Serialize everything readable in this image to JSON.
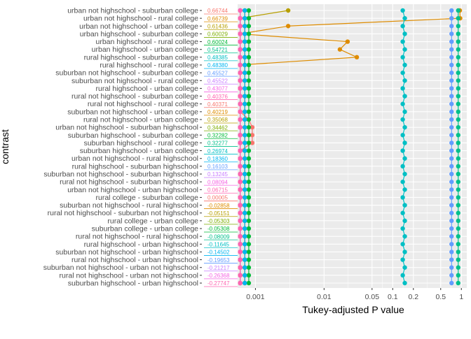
{
  "chart_data": {
    "type": "scatter",
    "title": "",
    "xlabel": "Tukey-adjusted P value",
    "ylabel": "contrast",
    "x_scale": "log10",
    "xlim": [
      0.00055,
      1.2
    ],
    "x_ticks": [
      {
        "value": 0.001,
        "label": "0.001"
      },
      {
        "value": 0.01,
        "label": "0.01"
      },
      {
        "value": 0.05,
        "label": "0.05"
      },
      {
        "value": 0.1,
        "label": "0.1"
      },
      {
        "value": 0.2,
        "label": "0.2"
      },
      {
        "value": 0.5,
        "label": "0.5"
      },
      {
        "value": 1,
        "label": "1"
      }
    ],
    "grid": true,
    "legend": "none",
    "colors": [
      "#F8766D",
      "#DE8C00",
      "#B79F00",
      "#7CAE00",
      "#00BA38",
      "#00C08B",
      "#00BFC4",
      "#00B4F0",
      "#619CFF",
      "#C77CFF",
      "#F564E3",
      "#FF64B0"
    ],
    "contrasts": [
      {
        "label": "urban not highschool - suburban college",
        "estimate": "0.66744"
      },
      {
        "label": "urban not highschool - rural college",
        "estimate": "0.66739"
      },
      {
        "label": "urban not highschool - urban college",
        "estimate": "0.61436"
      },
      {
        "label": "urban highschool - suburban college",
        "estimate": "0.60029"
      },
      {
        "label": "urban highschool - rural college",
        "estimate": "0.60024"
      },
      {
        "label": "urban highschool - urban college",
        "estimate": "0.54721"
      },
      {
        "label": "rural highschool - suburban college",
        "estimate": "0.48385"
      },
      {
        "label": "rural highschool - rural college",
        "estimate": "0.48380"
      },
      {
        "label": "suburban not highschool - suburban college",
        "estimate": "0.45527"
      },
      {
        "label": "suburban not highschool - rural college",
        "estimate": "0.45522"
      },
      {
        "label": "rural highschool - urban college",
        "estimate": "0.43077"
      },
      {
        "label": "rural not highschool - suburban college",
        "estimate": "0.40376"
      },
      {
        "label": "rural not highschool - rural college",
        "estimate": "0.40371"
      },
      {
        "label": "suburban not highschool - urban college",
        "estimate": "0.40219"
      },
      {
        "label": "rural not highschool - urban college",
        "estimate": "0.35068"
      },
      {
        "label": "urban not highschool - suburban highschool",
        "estimate": "0.34462"
      },
      {
        "label": "suburban highschool - suburban college",
        "estimate": "0.32282"
      },
      {
        "label": "suburban highschool - rural college",
        "estimate": "0.32277"
      },
      {
        "label": "suburban highschool - urban college",
        "estimate": "0.26974"
      },
      {
        "label": "urban not highschool - rural highschool",
        "estimate": "0.18360"
      },
      {
        "label": "rural highschool - suburban highschool",
        "estimate": "0.16103"
      },
      {
        "label": "suburban not highschool - suburban highschool",
        "estimate": "0.13245"
      },
      {
        "label": "rural not highschool - suburban highschool",
        "estimate": "0.08094"
      },
      {
        "label": "urban not highschool - urban highschool",
        "estimate": "0.06715"
      },
      {
        "label": "rural college - suburban college",
        "estimate": "0.00005"
      },
      {
        "label": "suburban not highschool - rural highschool",
        "estimate": "-0.02858"
      },
      {
        "label": "rural not highschool - suburban not highschool",
        "estimate": "-0.05151"
      },
      {
        "label": "rural college - urban college",
        "estimate": "-0.05303"
      },
      {
        "label": "suburban college - urban college",
        "estimate": "-0.05308"
      },
      {
        "label": "rural not highschool - rural highschool",
        "estimate": "-0.08009"
      },
      {
        "label": "rural highschool - urban highschool",
        "estimate": "-0.11645"
      },
      {
        "label": "suburban not highschool - urban highschool",
        "estimate": "-0.14502"
      },
      {
        "label": "rural not highschool - urban highschool",
        "estimate": "-0.19653"
      },
      {
        "label": "suburban not highschool - urban not highschool",
        "estimate": "-0.21217"
      },
      {
        "label": "rural not highschool - urban not highschool",
        "estimate": "-0.26368"
      },
      {
        "label": "suburban highschool - urban highschool",
        "estimate": "-0.27747"
      }
    ],
    "series": [
      {
        "color": "#F8766D",
        "values": [
          0.0006,
          0.0006,
          0.0006,
          0.0006,
          0.0006,
          0.0006,
          0.0006,
          0.0006,
          0.0006,
          0.0006,
          0.0006,
          0.0006,
          0.0006,
          0.0006,
          0.0008,
          0.0009,
          0.0009,
          0.0009,
          0.0006,
          0.0006,
          0.0006,
          0.0006,
          0.0006,
          0.0006,
          0.0006,
          0.0006,
          0.0006,
          0.0006,
          0.0006,
          0.0006,
          0.0006,
          0.0006,
          0.0006,
          0.0006,
          0.0006,
          0.0006
        ]
      },
      {
        "color": "#DE8C00",
        "values": [
          0.95,
          0.96,
          0.003,
          0.0006,
          0.022,
          0.017,
          0.03,
          0.0006,
          0.0006,
          0.0006,
          0.0006,
          0.0006,
          0.0006,
          0.0006,
          0.0006,
          0.0006,
          0.0006,
          0.0006,
          0.0006,
          0.0006,
          0.0006,
          0.0006,
          0.0006,
          0.0006,
          0.0006,
          0.0006,
          0.0006,
          0.0006,
          0.0006,
          0.0006,
          0.0006,
          0.0006,
          0.0006,
          0.0006,
          0.0006,
          0.0006
        ]
      },
      {
        "color": "#B79F00",
        "values": [
          0.003,
          0.0006,
          0.0006,
          0.0006,
          0.0006,
          0.0006,
          0.0006,
          0.0006,
          0.0006,
          0.0006,
          0.0006,
          0.0006,
          0.0006,
          0.0006,
          0.0006,
          0.0006,
          0.0006,
          0.0006,
          0.0006,
          0.0006,
          0.0006,
          0.0006,
          0.0006,
          0.0006,
          0.0006,
          0.0006,
          0.0006,
          0.0006,
          0.0006,
          0.0006,
          0.0006,
          0.0006,
          0.0006,
          0.0006,
          0.0006,
          0.0006
        ]
      },
      {
        "color": "#7CAE00",
        "values": [
          0.0007,
          0.0007,
          0.0007,
          0.0007,
          0.0007,
          0.0007,
          0.0007,
          0.0007,
          0.0007,
          0.0007,
          0.0007,
          0.0007,
          0.0007,
          0.0007,
          0.0007,
          0.0007,
          0.0007,
          0.0007,
          0.0007,
          0.0007,
          0.0007,
          0.0007,
          0.0007,
          0.0007,
          0.0007,
          0.0007,
          0.0007,
          0.0007,
          0.0007,
          0.0007,
          0.0007,
          0.0007,
          0.0007,
          0.0007,
          0.0007,
          0.0007
        ]
      },
      {
        "color": "#00BA38",
        "values": [
          0.0008,
          0.0008,
          0.0008,
          0.0008,
          0.0008,
          0.0008,
          0.0008,
          0.0008,
          0.0008,
          0.0008,
          0.0008,
          0.0008,
          0.0008,
          0.0008,
          0.0008,
          0.0008,
          0.0008,
          0.0008,
          0.0008,
          0.0008,
          0.0008,
          0.0008,
          0.0008,
          0.0008,
          0.0008,
          0.0008,
          0.0008,
          0.0008,
          0.0008,
          0.0008,
          0.0008,
          0.0008,
          0.0008,
          0.0008,
          0.0008,
          0.0008
        ]
      },
      {
        "color": "#00C08B",
        "values": [
          0.9,
          0.9,
          0.9,
          0.9,
          0.9,
          0.9,
          0.9,
          0.9,
          0.9,
          0.9,
          0.9,
          0.9,
          0.9,
          0.9,
          0.9,
          0.9,
          0.9,
          0.9,
          0.9,
          0.9,
          0.9,
          0.9,
          0.9,
          0.9,
          0.9,
          0.9,
          0.9,
          0.9,
          0.9,
          0.9,
          0.9,
          0.9,
          0.9,
          0.9,
          0.9,
          0.9
        ]
      },
      {
        "color": "#00BFC4",
        "values": [
          0.14,
          0.15,
          0.14,
          0.15,
          0.14,
          0.15,
          0.14,
          0.15,
          0.14,
          0.15,
          0.14,
          0.15,
          0.14,
          0.15,
          0.14,
          0.15,
          0.14,
          0.15,
          0.14,
          0.15,
          0.14,
          0.15,
          0.14,
          0.15,
          0.14,
          0.15,
          0.14,
          0.15,
          0.14,
          0.15,
          0.14,
          0.15,
          0.14,
          0.15,
          0.14,
          0.15
        ]
      },
      {
        "color": "#00B4F0",
        "values": [
          0.0007,
          0.0007,
          0.0007,
          0.0007,
          0.0007,
          0.0007,
          0.0007,
          0.0007,
          0.0007,
          0.0007,
          0.0007,
          0.0007,
          0.0007,
          0.0007,
          0.0007,
          0.0007,
          0.0007,
          0.0007,
          0.0007,
          0.0007,
          0.0007,
          0.0007,
          0.0007,
          0.0007,
          0.0007,
          0.0007,
          0.0007,
          0.0007,
          0.0007,
          0.0007,
          0.0007,
          0.0007,
          0.0007,
          0.0007,
          0.0007,
          0.0007
        ]
      },
      {
        "color": "#619CFF",
        "values": [
          0.72,
          0.72,
          0.72,
          0.72,
          0.72,
          0.72,
          0.72,
          0.72,
          0.72,
          0.72,
          0.72,
          0.72,
          0.72,
          0.72,
          0.72,
          0.72,
          0.72,
          0.72,
          0.72,
          0.72,
          0.72,
          0.72,
          0.72,
          0.72,
          0.72,
          0.72,
          0.72,
          0.72,
          0.72,
          0.72,
          0.72,
          0.72,
          0.72,
          0.72,
          0.72,
          0.72
        ]
      },
      {
        "color": "#C77CFF",
        "values": [
          0.0006,
          0.0006,
          0.0006,
          0.0006,
          0.0006,
          0.0006,
          0.0006,
          0.0006,
          0.0006,
          0.0006,
          0.0006,
          0.0006,
          0.0006,
          0.0006,
          0.0006,
          0.0006,
          0.0006,
          0.0006,
          0.0006,
          0.0006,
          0.0006,
          0.0006,
          0.0006,
          0.0006,
          0.0006,
          0.0006,
          0.0006,
          0.0006,
          0.0006,
          0.0006,
          0.0006,
          0.0006,
          0.0006,
          0.0006,
          0.0006,
          0.0006
        ]
      },
      {
        "color": "#F564E3",
        "values": [
          0.0006,
          0.0006,
          0.0006,
          0.0006,
          0.0006,
          0.0006,
          0.0006,
          0.0006,
          0.0006,
          0.0006,
          0.0006,
          0.0006,
          0.0006,
          0.0006,
          0.0006,
          0.0006,
          0.0006,
          0.0006,
          0.0006,
          0.0006,
          0.0006,
          0.0006,
          0.0006,
          0.0006,
          0.0006,
          0.0006,
          0.0006,
          0.0006,
          0.0006,
          0.0006,
          0.0006,
          0.0006,
          0.0006,
          0.0006,
          0.0006,
          0.0006
        ]
      },
      {
        "color": "#FF64B0",
        "values": [
          0.0006,
          0.0006,
          0.0006,
          0.0006,
          0.0006,
          0.0006,
          0.0006,
          0.0006,
          0.0006,
          0.0006,
          0.0006,
          0.0006,
          0.0006,
          0.0006,
          0.0006,
          0.0006,
          0.0006,
          0.0006,
          0.0006,
          0.0006,
          0.0006,
          0.0006,
          0.0006,
          0.0006,
          0.0006,
          0.0006,
          0.0006,
          0.0006,
          0.0006,
          0.0006,
          0.0006,
          0.0006,
          0.0006,
          0.0006,
          0.0006,
          0.0006
        ]
      }
    ]
  }
}
